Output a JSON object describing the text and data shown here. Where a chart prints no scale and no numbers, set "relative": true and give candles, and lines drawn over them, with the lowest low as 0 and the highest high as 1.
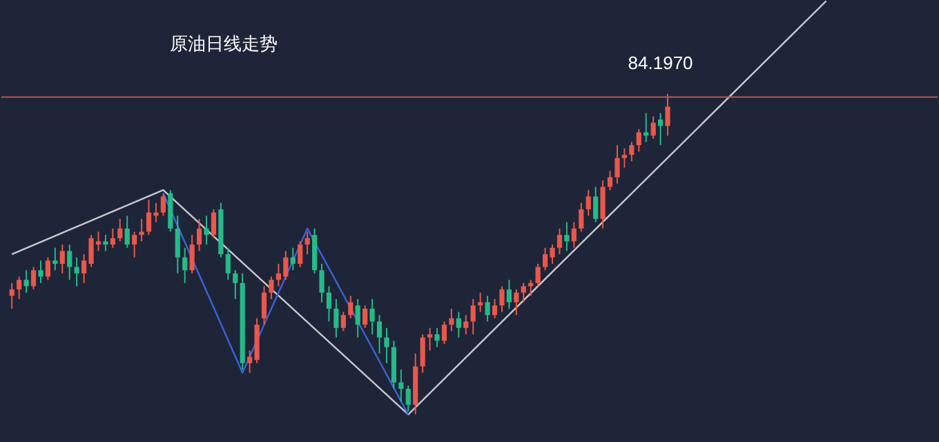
{
  "chart_data": {
    "type": "candlestick",
    "title": "原油日线走势",
    "relative": true,
    "categories": [
      null,
      null,
      null,
      null,
      null,
      null,
      null,
      null,
      null,
      null,
      null,
      null,
      null,
      null,
      null,
      null,
      null,
      null,
      null,
      null,
      null,
      null,
      null,
      null,
      null,
      null,
      null,
      null,
      null,
      null,
      null,
      null,
      null,
      null,
      null,
      null,
      null,
      null,
      null,
      null,
      null,
      null,
      null,
      null,
      null,
      null,
      null,
      null,
      null,
      null,
      null,
      null,
      null,
      null,
      null,
      null,
      null,
      null,
      null,
      null,
      null,
      null,
      null,
      null,
      null,
      null,
      null,
      null,
      null,
      null,
      null,
      null,
      null,
      null,
      null,
      null,
      null,
      null,
      null,
      null,
      null,
      null,
      null,
      null,
      null,
      null,
      null,
      null,
      null,
      null,
      null,
      null,
      null,
      null,
      null,
      null,
      null,
      null,
      null,
      null,
      null,
      null,
      null,
      null,
      null,
      null,
      null,
      null,
      null,
      null,
      null,
      null,
      null,
      null,
      null,
      null,
      null,
      null,
      null,
      null,
      null,
      null,
      null,
      null,
      null,
      null,
      null,
      null
    ],
    "ohlc": [
      [
        0.37,
        0.41,
        0.33,
        0.39
      ],
      [
        0.39,
        0.43,
        0.36,
        0.42
      ],
      [
        0.42,
        0.45,
        0.38,
        0.4
      ],
      [
        0.4,
        0.46,
        0.39,
        0.45
      ],
      [
        0.45,
        0.48,
        0.41,
        0.43
      ],
      [
        0.43,
        0.49,
        0.42,
        0.48
      ],
      [
        0.48,
        0.52,
        0.45,
        0.47
      ],
      [
        0.47,
        0.53,
        0.44,
        0.51
      ],
      [
        0.51,
        0.53,
        0.42,
        0.46
      ],
      [
        0.46,
        0.49,
        0.4,
        0.44
      ],
      [
        0.44,
        0.5,
        0.41,
        0.48
      ],
      [
        0.47,
        0.56,
        0.46,
        0.55
      ],
      [
        0.53,
        0.57,
        0.51,
        0.54
      ],
      [
        0.54,
        0.56,
        0.51,
        0.53
      ],
      [
        0.53,
        0.58,
        0.52,
        0.55
      ],
      [
        0.55,
        0.61,
        0.54,
        0.58
      ],
      [
        0.58,
        0.62,
        0.52,
        0.53
      ],
      [
        0.53,
        0.57,
        0.49,
        0.56
      ],
      [
        0.56,
        0.61,
        0.54,
        0.57
      ],
      [
        0.57,
        0.67,
        0.56,
        0.63
      ],
      [
        0.62,
        0.66,
        0.6,
        0.63
      ],
      [
        0.63,
        0.69,
        0.62,
        0.68
      ],
      [
        0.69,
        0.7,
        0.57,
        0.58
      ],
      [
        0.58,
        0.62,
        0.44,
        0.49
      ],
      [
        0.49,
        0.52,
        0.41,
        0.45
      ],
      [
        0.45,
        0.56,
        0.44,
        0.53
      ],
      [
        0.53,
        0.61,
        0.51,
        0.58
      ],
      [
        0.58,
        0.62,
        0.53,
        0.56
      ],
      [
        0.56,
        0.64,
        0.55,
        0.63
      ],
      [
        0.64,
        0.66,
        0.49,
        0.5
      ],
      [
        0.5,
        0.52,
        0.42,
        0.44
      ],
      [
        0.44,
        0.45,
        0.36,
        0.41
      ],
      [
        0.41,
        0.44,
        0.14,
        0.16
      ],
      [
        0.16,
        0.2,
        0.13,
        0.18
      ],
      [
        0.17,
        0.3,
        0.16,
        0.28
      ],
      [
        0.3,
        0.4,
        0.28,
        0.38
      ],
      [
        0.38,
        0.43,
        0.36,
        0.42
      ],
      [
        0.42,
        0.47,
        0.4,
        0.44
      ],
      [
        0.43,
        0.51,
        0.42,
        0.49
      ],
      [
        0.49,
        0.52,
        0.45,
        0.47
      ],
      [
        0.47,
        0.54,
        0.46,
        0.53
      ],
      [
        0.53,
        0.57,
        0.5,
        0.55
      ],
      [
        0.56,
        0.58,
        0.44,
        0.45
      ],
      [
        0.45,
        0.47,
        0.35,
        0.38
      ],
      [
        0.38,
        0.4,
        0.29,
        0.33
      ],
      [
        0.33,
        0.36,
        0.24,
        0.27
      ],
      [
        0.27,
        0.32,
        0.26,
        0.31
      ],
      [
        0.31,
        0.37,
        0.3,
        0.35
      ],
      [
        0.34,
        0.36,
        0.24,
        0.28
      ],
      [
        0.28,
        0.34,
        0.27,
        0.33
      ],
      [
        0.33,
        0.36,
        0.25,
        0.29
      ],
      [
        0.29,
        0.31,
        0.19,
        0.24
      ],
      [
        0.24,
        0.27,
        0.16,
        0.21
      ],
      [
        0.21,
        0.23,
        0.08,
        0.1
      ],
      [
        0.1,
        0.14,
        0.04,
        0.08
      ],
      [
        0.08,
        0.09,
        0.01,
        0.03
      ],
      [
        0.03,
        0.19,
        0.0,
        0.15
      ],
      [
        0.15,
        0.25,
        0.13,
        0.24
      ],
      [
        0.24,
        0.27,
        0.2,
        0.25
      ],
      [
        0.25,
        0.27,
        0.21,
        0.23
      ],
      [
        0.23,
        0.29,
        0.22,
        0.28
      ],
      [
        0.28,
        0.33,
        0.26,
        0.3
      ],
      [
        0.3,
        0.32,
        0.24,
        0.27
      ],
      [
        0.27,
        0.31,
        0.25,
        0.29
      ],
      [
        0.29,
        0.36,
        0.25,
        0.34
      ],
      [
        0.34,
        0.38,
        0.32,
        0.35
      ],
      [
        0.35,
        0.37,
        0.29,
        0.31
      ],
      [
        0.31,
        0.36,
        0.3,
        0.34
      ],
      [
        0.34,
        0.4,
        0.32,
        0.39
      ],
      [
        0.39,
        0.42,
        0.33,
        0.35
      ],
      [
        0.35,
        0.39,
        0.31,
        0.38
      ],
      [
        0.38,
        0.41,
        0.35,
        0.4
      ],
      [
        0.4,
        0.42,
        0.37,
        0.41
      ],
      [
        0.41,
        0.47,
        0.4,
        0.46
      ],
      [
        0.46,
        0.52,
        0.45,
        0.5
      ],
      [
        0.49,
        0.53,
        0.47,
        0.52
      ],
      [
        0.52,
        0.58,
        0.5,
        0.56
      ],
      [
        0.56,
        0.6,
        0.51,
        0.54
      ],
      [
        0.54,
        0.6,
        0.52,
        0.58
      ],
      [
        0.58,
        0.66,
        0.57,
        0.64
      ],
      [
        0.64,
        0.7,
        0.62,
        0.68
      ],
      [
        0.68,
        0.71,
        0.6,
        0.61
      ],
      [
        0.61,
        0.73,
        0.58,
        0.71
      ],
      [
        0.71,
        0.76,
        0.7,
        0.74
      ],
      [
        0.74,
        0.84,
        0.72,
        0.8
      ],
      [
        0.8,
        0.83,
        0.77,
        0.81
      ],
      [
        0.81,
        0.85,
        0.79,
        0.84
      ],
      [
        0.84,
        0.89,
        0.82,
        0.88
      ],
      [
        0.88,
        0.94,
        0.85,
        0.87
      ],
      [
        0.87,
        0.93,
        0.86,
        0.91
      ],
      [
        0.92,
        0.94,
        0.84,
        0.9
      ],
      [
        0.9,
        1.0,
        0.87,
        0.96
      ],
      null,
      null,
      null,
      null,
      null,
      null,
      null,
      null,
      null,
      null,
      null,
      null,
      null,
      null,
      null,
      null,
      null,
      null,
      null,
      null,
      null,
      null,
      null,
      null,
      null,
      null,
      null,
      null,
      null,
      null,
      null,
      null,
      null,
      null,
      null,
      null
    ],
    "series": [
      {
        "type": "line",
        "values": [
          0.5,
          null,
          null,
          null,
          null,
          null,
          null,
          null,
          null,
          null,
          null,
          null,
          null,
          null,
          null,
          null,
          null,
          null,
          null,
          null,
          null,
          0.7,
          null,
          null,
          null,
          null,
          null,
          null,
          null,
          null,
          null,
          null,
          null,
          null,
          null,
          null,
          null,
          null,
          null,
          null,
          null,
          null,
          null,
          null,
          null,
          null,
          null,
          null,
          null,
          null,
          null,
          null,
          null,
          null,
          null,
          0.0,
          null,
          null,
          null,
          null,
          null,
          null,
          null,
          null,
          null,
          null,
          null,
          null,
          null,
          null,
          null,
          null,
          null,
          null,
          null,
          null,
          null,
          null,
          null,
          null,
          null,
          null,
          null,
          null,
          null,
          null,
          null,
          null,
          null,
          null,
          null,
          null,
          null,
          null,
          null,
          null,
          null,
          null,
          null,
          null,
          null,
          null,
          null,
          null,
          null,
          null,
          null,
          null,
          null,
          null,
          null,
          null,
          null,
          1.29,
          null,
          null,
          null,
          null,
          null,
          null,
          null,
          null,
          null,
          null,
          null,
          null,
          null,
          null
        ],
        "color": "#c8c8d0"
      },
      {
        "type": "line",
        "values": [
          null,
          null,
          null,
          null,
          null,
          null,
          null,
          null,
          null,
          null,
          null,
          null,
          null,
          null,
          null,
          null,
          null,
          null,
          null,
          null,
          null,
          0.69,
          null,
          null,
          null,
          null,
          null,
          null,
          null,
          null,
          null,
          null,
          0.13,
          null,
          null,
          null,
          null,
          null,
          null,
          null,
          null,
          0.58,
          null,
          null,
          null,
          null,
          null,
          null,
          null,
          null,
          null,
          null,
          null,
          null,
          null,
          0.0,
          null,
          null,
          null,
          null,
          null,
          null,
          null,
          null,
          null,
          null,
          null,
          null,
          null,
          null,
          null,
          null,
          null,
          null,
          null,
          null,
          null,
          null,
          null,
          null,
          null,
          null,
          null,
          null,
          null,
          null,
          null,
          null,
          null,
          null,
          null,
          null,
          null,
          null,
          null,
          null,
          null,
          null,
          null,
          null,
          null,
          null,
          null,
          null,
          null,
          null,
          null,
          null,
          null,
          null,
          null,
          null,
          null,
          null,
          null,
          null,
          null,
          null,
          null,
          null,
          null,
          null,
          null,
          null,
          null,
          null,
          null,
          null
        ],
        "color": "#3b63d6"
      }
    ],
    "ref_lines": [
      {
        "axis": "y",
        "value": 0.99,
        "color": "#b05a5a"
      }
    ],
    "annotations": [
      "84.1970"
    ]
  }
}
